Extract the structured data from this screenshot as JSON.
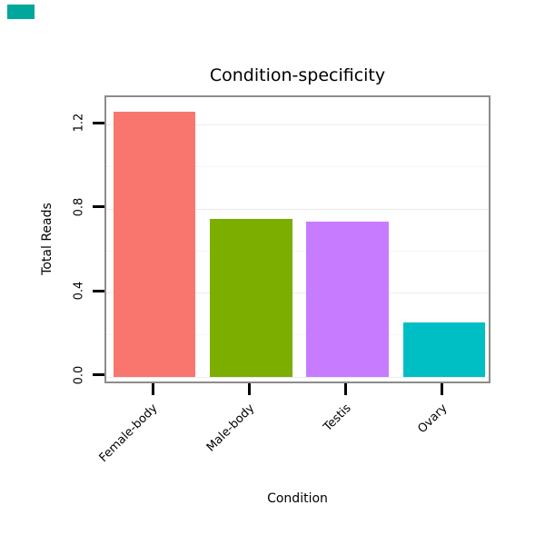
{
  "ui": {
    "corner_swatch_color": "#00a79b"
  },
  "chart_data": {
    "type": "bar",
    "title": "Condition-specificity",
    "xlabel": "Condition",
    "ylabel": "Total Reads",
    "categories": [
      "Female-body",
      "Male-body",
      "Testis",
      "Ovary"
    ],
    "values": [
      1.26,
      0.75,
      0.74,
      0.26
    ],
    "colors": [
      "#F8766D",
      "#7CAE00",
      "#C77CFF",
      "#00BFC4"
    ],
    "y_ticks": [
      0.0,
      0.4,
      0.8,
      1.2
    ],
    "y_tick_labels": [
      "0.0",
      "0.4",
      "0.8",
      "1.2"
    ],
    "y_minor_ticks": [
      0.2,
      0.6,
      1.0
    ],
    "ylim": [
      -0.04,
      1.33
    ],
    "grid": true,
    "legend": "none",
    "bar_width_fraction": 0.85
  }
}
